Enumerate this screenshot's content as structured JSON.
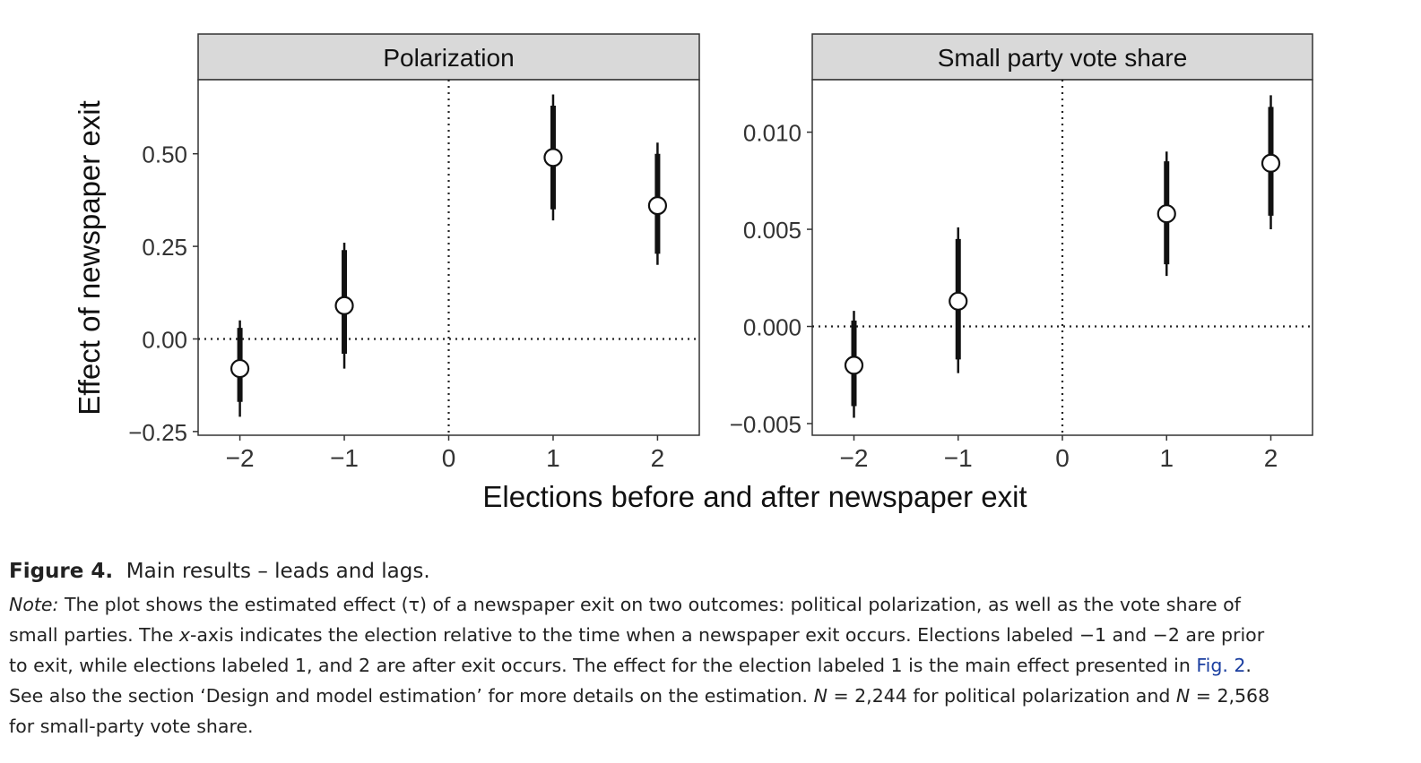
{
  "chart_data": {
    "type": "scatter",
    "ylabel": "Effect of newspaper exit",
    "xlabel": "Elections before and after newspaper exit",
    "panels": [
      {
        "title": "Polarization",
        "x": [
          -2,
          -1,
          1,
          2
        ],
        "y": [
          -0.08,
          0.09,
          0.49,
          0.36
        ],
        "ci_inner": [
          [
            -0.17,
            0.03
          ],
          [
            -0.04,
            0.24
          ],
          [
            0.35,
            0.63
          ],
          [
            0.23,
            0.5
          ]
        ],
        "ci_outer": [
          [
            -0.21,
            0.05
          ],
          [
            -0.08,
            0.26
          ],
          [
            0.32,
            0.66
          ],
          [
            0.2,
            0.53
          ]
        ],
        "xticks": [
          -2,
          -1,
          0,
          1,
          2
        ],
        "xtick_labels": [
          "−2",
          "−1",
          "0",
          "1",
          "2"
        ],
        "yticks": [
          -0.25,
          0,
          0.25,
          0.5
        ],
        "ytick_labels": [
          "−0.25",
          "0.00",
          "0.25",
          "0.50"
        ],
        "xlim": [
          -2.4,
          2.4
        ],
        "ylim": [
          -0.26,
          0.7
        ],
        "reference_lines": {
          "x": 0,
          "y": 0
        }
      },
      {
        "title": "Small party vote share",
        "x": [
          -2,
          -1,
          1,
          2
        ],
        "y": [
          -0.002,
          0.0013,
          0.0058,
          0.0084
        ],
        "ci_inner": [
          [
            -0.0041,
            0.0003
          ],
          [
            -0.0017,
            0.0045
          ],
          [
            0.0032,
            0.0085
          ],
          [
            0.0057,
            0.0113
          ]
        ],
        "ci_outer": [
          [
            -0.0047,
            0.0008
          ],
          [
            -0.0024,
            0.0051
          ],
          [
            0.0026,
            0.009
          ],
          [
            0.005,
            0.0119
          ]
        ],
        "xticks": [
          -2,
          -1,
          0,
          1,
          2
        ],
        "xtick_labels": [
          "−2",
          "−1",
          "0",
          "1",
          "2"
        ],
        "yticks": [
          -0.005,
          0,
          0.005,
          0.01
        ],
        "ytick_labels": [
          "−0.005",
          "0.000",
          "0.005",
          "0.010"
        ],
        "xlim": [
          -2.4,
          2.4
        ],
        "ylim": [
          -0.0056,
          0.0127
        ],
        "reference_lines": {
          "x": 0,
          "y": 0
        }
      }
    ]
  },
  "caption": {
    "figure_label": "Figure 4.",
    "figure_title": "Main results – leads and lags.",
    "note_label": "Note:",
    "line1": " The plot shows the estimated effect (τ) of a newspaper exit on two outcomes: political polarization, as well as the vote share of",
    "line2_a": "small parties. The ",
    "line2_x": "x",
    "line2_b": "-axis indicates the election relative to the time when a newspaper exit occurs. Elections labeled −1 and −2 are prior",
    "line3_a": "to exit, while elections labeled 1, and 2 are after exit occurs. The effect for the election labeled 1 is the main effect presented in ",
    "line3_link": "Fig. 2",
    "line3_b": ".",
    "line4_a": "See also the section ‘Design and model estimation’ for more details on the estimation. ",
    "line4_n1": "N",
    "line4_b": " = 2,244 for political polarization and ",
    "line4_n2": "N",
    "line4_c": " = 2,568",
    "line5": "for small-party vote share."
  }
}
